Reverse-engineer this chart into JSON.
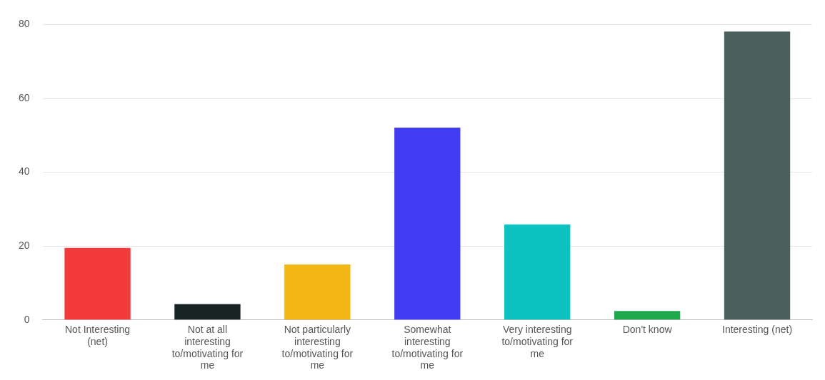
{
  "chart_data": {
    "type": "bar",
    "categories": [
      "Not Interesting (net)",
      "Not at all interesting to/motivating for me",
      "Not particularly interesting to/motivating for me",
      "Somewhat interesting to/motivating for me",
      "Very interesting to/motivating for me",
      "Don't know",
      "Interesting (net)"
    ],
    "values": [
      19.5,
      4.3,
      15,
      52.1,
      25.9,
      2.4,
      78.1
    ],
    "colors": [
      "#f33b3b",
      "#182424",
      "#f2b714",
      "#403cf2",
      "#0dc2c0",
      "#1ea84e",
      "#4b605d"
    ],
    "ylim": [
      0,
      80
    ],
    "yticks": [
      0,
      20,
      40,
      60,
      80
    ],
    "grid": "y",
    "legend": false
  }
}
